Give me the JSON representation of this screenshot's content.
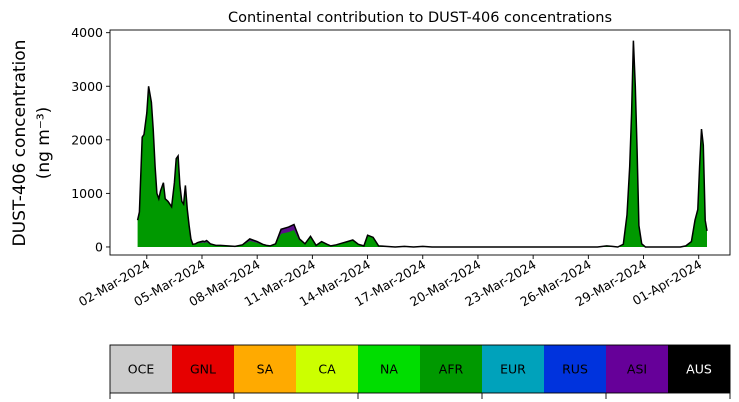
{
  "chart_data": {
    "type": "area",
    "title": "Continental contribution to DUST-406 concentrations",
    "ylabel_line1": "DUST-406 concentration",
    "ylabel_line2": "(ng m⁻³)",
    "ylim": [
      -150,
      4050
    ],
    "yticks": [
      "0",
      "1000",
      "2000",
      "3000",
      "4000"
    ],
    "ytick_values": [
      0,
      1000,
      2000,
      3000,
      4000
    ],
    "x_start": "2024-02-29",
    "xlim_days": [
      0,
      33.7
    ],
    "xticks": [
      "02-Mar-2024",
      "05-Mar-2024",
      "08-Mar-2024",
      "11-Mar-2024",
      "14-Mar-2024",
      "17-Mar-2024",
      "20-Mar-2024",
      "23-Mar-2024",
      "26-Mar-2024",
      "29-Mar-2024",
      "01-Apr-2024"
    ],
    "xtick_days": [
      2,
      5,
      8,
      11,
      14,
      17,
      20,
      23,
      26,
      29,
      32
    ],
    "series_total": {
      "days": [
        1.5,
        1.6,
        1.75,
        1.85,
        2.0,
        2.1,
        2.25,
        2.35,
        2.45,
        2.55,
        2.65,
        2.75,
        2.9,
        3.0,
        3.15,
        3.25,
        3.35,
        3.5,
        3.6,
        3.7,
        3.8,
        3.9,
        4.0,
        4.1,
        4.2,
        4.3,
        4.4,
        4.5,
        4.65,
        4.75,
        4.85,
        4.95,
        5.05,
        5.15,
        5.25,
        5.35,
        5.45,
        5.55,
        5.65,
        5.75,
        6.0,
        6.4,
        6.8,
        7.2,
        7.6,
        8.0,
        8.3,
        8.5,
        8.7,
        9.0,
        9.3,
        9.7,
        10.0,
        10.3,
        10.6,
        10.9,
        11.2,
        11.5,
        11.8,
        12.0,
        12.3,
        12.6,
        12.9,
        13.2,
        13.5,
        13.8,
        14.0,
        14.3,
        14.6,
        15.0,
        15.5,
        16.0,
        16.5,
        17.0,
        17.5,
        18.0,
        19.0,
        20.0,
        21.0,
        22.0,
        23.0,
        24.0,
        25.0,
        25.5,
        26.0,
        26.5,
        27.0,
        27.3,
        27.6,
        27.9,
        28.1,
        28.25,
        28.35,
        28.45,
        28.55,
        28.65,
        28.75,
        28.9,
        29.1,
        29.4,
        30.0,
        30.6,
        31.0,
        31.3,
        31.6,
        31.8,
        31.95,
        32.05,
        32.15,
        32.25,
        32.35,
        32.45
      ],
      "values": [
        500,
        650,
        2050,
        2100,
        2500,
        3000,
        2700,
        2200,
        1500,
        1000,
        900,
        1050,
        1200,
        900,
        850,
        800,
        750,
        1200,
        1650,
        1700,
        1150,
        850,
        800,
        1150,
        700,
        400,
        150,
        50,
        60,
        80,
        90,
        100,
        110,
        100,
        120,
        90,
        60,
        50,
        40,
        30,
        30,
        20,
        10,
        40,
        150,
        100,
        50,
        30,
        20,
        60,
        330,
        370,
        420,
        150,
        60,
        200,
        30,
        100,
        50,
        20,
        40,
        70,
        100,
        130,
        50,
        20,
        220,
        180,
        20,
        10,
        0,
        10,
        0,
        10,
        0,
        0,
        0,
        0,
        0,
        0,
        0,
        0,
        0,
        0,
        0,
        0,
        20,
        10,
        0,
        50,
        600,
        1500,
        2500,
        3850,
        3000,
        1800,
        400,
        60,
        0,
        0,
        0,
        0,
        0,
        20,
        100,
        500,
        700,
        1500,
        2200,
        1900,
        500,
        300
      ]
    },
    "legend_categories": [
      "OCE",
      "GNL",
      "SA",
      "CA",
      "NA",
      "AFR",
      "EUR",
      "RUS",
      "ASI",
      "AUS"
    ],
    "legend_colors": [
      "#cccccc",
      "#e60000",
      "#ffaa00",
      "#ccff00",
      "#00dd00",
      "#009900",
      "#00a2bb",
      "#0033dd",
      "#660099",
      "#000000"
    ],
    "legend_text_colors": [
      "#000000",
      "#000000",
      "#000000",
      "#000000",
      "#000000",
      "#000000",
      "#000000",
      "#000000",
      "#000000",
      "#ffffff"
    ]
  }
}
